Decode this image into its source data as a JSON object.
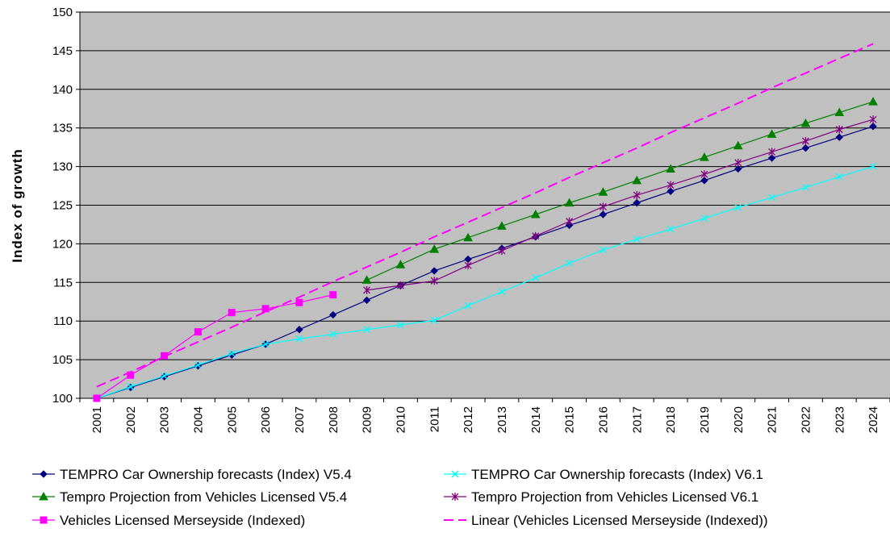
{
  "chart_data": {
    "type": "line",
    "title": "",
    "xlabel": "",
    "ylabel": "Index of growth",
    "ylim": [
      100,
      150
    ],
    "y_ticks": [
      100,
      105,
      110,
      115,
      120,
      125,
      130,
      135,
      140,
      145,
      150
    ],
    "grid": "horizontal",
    "legend_position": "bottom",
    "plot_background": "#c0c0c0",
    "categories": [
      "2001",
      "2002",
      "2003",
      "2004",
      "2005",
      "2006",
      "2007",
      "2008",
      "2009",
      "2010",
      "2011",
      "2012",
      "2013",
      "2014",
      "2015",
      "2016",
      "2017",
      "2018",
      "2019",
      "2020",
      "2021",
      "2022",
      "2023",
      "2024"
    ],
    "series": [
      {
        "name": "TEMPRO Car Ownership forecasts (Index) V5.4",
        "color": "#000080",
        "marker": "diamond",
        "dash": "solid",
        "values": [
          100,
          101.4,
          102.8,
          104.2,
          105.6,
          107.0,
          108.9,
          110.8,
          112.7,
          114.6,
          116.5,
          118.0,
          119.4,
          120.9,
          122.4,
          123.8,
          125.3,
          126.8,
          128.2,
          129.7,
          131.1,
          132.4,
          133.8,
          135.2
        ]
      },
      {
        "name": "TEMPRO Car Ownership forecasts (Index) V6.1",
        "color": "#00ffff",
        "marker": "x",
        "dash": "solid",
        "values": [
          100,
          101.5,
          102.9,
          104.3,
          105.8,
          107.0,
          107.7,
          108.3,
          108.9,
          109.5,
          110.1,
          112.0,
          113.8,
          115.6,
          117.5,
          119.2,
          120.6,
          121.9,
          123.3,
          124.7,
          126.0,
          127.3,
          128.7,
          130.0
        ]
      },
      {
        "name": "Tempro Projection from Vehicles Licensed V5.4",
        "color": "#008000",
        "marker": "triangle",
        "dash": "solid",
        "values": [
          null,
          null,
          null,
          null,
          null,
          null,
          null,
          null,
          115.3,
          117.3,
          119.3,
          120.8,
          122.3,
          123.8,
          125.3,
          126.7,
          128.2,
          129.7,
          131.2,
          132.7,
          134.2,
          135.6,
          137.0,
          138.4
        ]
      },
      {
        "name": "Tempro Projection from Vehicles Licensed V6.1",
        "color": "#800080",
        "marker": "star",
        "dash": "solid",
        "values": [
          null,
          null,
          null,
          null,
          null,
          null,
          null,
          null,
          114.0,
          114.6,
          115.2,
          117.2,
          119.1,
          121.0,
          122.9,
          124.8,
          126.3,
          127.6,
          129.0,
          130.5,
          131.9,
          133.3,
          134.8,
          136.1
        ]
      },
      {
        "name": "Vehicles Licensed Merseyside (Indexed)",
        "color": "#ff00ff",
        "marker": "square",
        "dash": "solid",
        "values": [
          100,
          103.0,
          105.5,
          108.6,
          111.1,
          111.6,
          112.4,
          113.4,
          null,
          null,
          null,
          null,
          null,
          null,
          null,
          null,
          null,
          null,
          null,
          null,
          null,
          null,
          null,
          null
        ]
      },
      {
        "name": "Linear (Vehicles Licensed Merseyside (Indexed))",
        "color": "#ff00ff",
        "marker": "none",
        "dash": "dashed",
        "values": [
          101.5,
          103.4,
          105.4,
          107.3,
          109.2,
          111.2,
          113.1,
          115.1,
          117.0,
          118.9,
          120.9,
          122.8,
          124.7,
          126.6,
          128.6,
          130.5,
          132.4,
          134.4,
          136.3,
          138.2,
          140.2,
          142.1,
          144.0,
          145.9
        ]
      }
    ]
  }
}
